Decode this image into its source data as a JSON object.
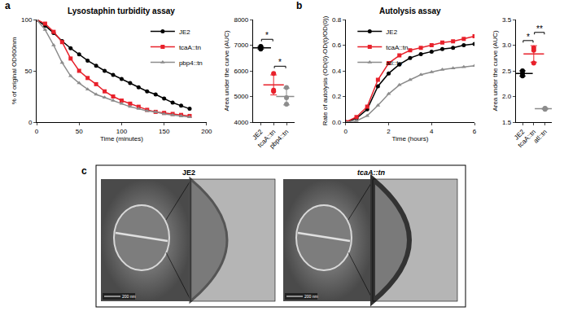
{
  "panel_labels": [
    "a",
    "b",
    "c"
  ],
  "chart_data": [
    {
      "type": "line",
      "title": "Lysostaphin turbidity assay",
      "x_label": "Time (minutes)",
      "y_label": "% of original OD600nm",
      "x": [
        0,
        10,
        20,
        30,
        40,
        50,
        60,
        70,
        80,
        90,
        100,
        110,
        120,
        130,
        140,
        150,
        160,
        170,
        180
      ],
      "series": [
        {
          "name": "JE2",
          "color": "#000000",
          "marker": "circle",
          "values": [
            100,
            94,
            87,
            79,
            72,
            66,
            60,
            55,
            50,
            46,
            42,
            38,
            34,
            30,
            27,
            23,
            19,
            16,
            13
          ]
        },
        {
          "name": "tcaA::tn",
          "color": "#e8212b",
          "marker": "square",
          "values": [
            100,
            96,
            88,
            78,
            62,
            50,
            43,
            37,
            30,
            25,
            21,
            18,
            15,
            12,
            10,
            9,
            8,
            7,
            6
          ]
        },
        {
          "name": "pbp4::tn",
          "color": "#8c8c8c",
          "marker": "triangle",
          "values": [
            100,
            90,
            75,
            58,
            45,
            38,
            32,
            27,
            24,
            21,
            18,
            15,
            13,
            11,
            10,
            8,
            7,
            6,
            5
          ]
        }
      ],
      "xlim": [
        0,
        200
      ],
      "xticks": [
        0,
        50,
        100,
        150,
        200
      ],
      "ylim": [
        0,
        100
      ],
      "yticks": [
        0,
        50,
        100
      ],
      "legend": "top right",
      "grid": false
    },
    {
      "type": "dot",
      "y_label": "Area under the curve (AUC)",
      "categories": [
        "JE2",
        "tcaA::tn",
        "pbp4::tn"
      ],
      "values": [
        [
          6850,
          6900,
          6950
        ],
        [
          5900,
          5250,
          5200
        ],
        [
          5350,
          4950,
          4700
        ]
      ],
      "mean": [
        6900,
        5450,
        5000
      ],
      "sd": [
        50,
        390,
        328
      ],
      "colors": [
        "#000000",
        "#e8212b",
        "#8c8c8c"
      ],
      "ylim": [
        4000,
        8000
      ],
      "yticks": [
        4000,
        5000,
        6000,
        7000,
        8000
      ],
      "annotations": [
        {
          "from": 0,
          "to": 1,
          "label": "*"
        },
        {
          "from": 1,
          "to": 2,
          "label": "*"
        }
      ],
      "grid": false
    },
    {
      "type": "line",
      "title": "Autolysis assay",
      "x_label": "Time (hours)",
      "y_label": "Rate of autolysis (OD(0)-OD(t)/OD(0))",
      "x": [
        0,
        0.5,
        1,
        1.5,
        2,
        2.5,
        3,
        3.5,
        4,
        4.5,
        5,
        5.5,
        6
      ],
      "series": [
        {
          "name": "JE2",
          "color": "#000000",
          "marker": "circle",
          "values": [
            0,
            0.03,
            0.1,
            0.28,
            0.38,
            0.45,
            0.5,
            0.53,
            0.55,
            0.57,
            0.58,
            0.6,
            0.61
          ]
        },
        {
          "name": "tcaA::tn",
          "color": "#e8212b",
          "marker": "square",
          "values": [
            0,
            0.04,
            0.12,
            0.33,
            0.46,
            0.52,
            0.56,
            0.58,
            0.6,
            0.62,
            0.63,
            0.65,
            0.67
          ]
        },
        {
          "name": "atl::tn",
          "color": "#8c8c8c",
          "marker": "triangle",
          "values": [
            0,
            0.01,
            0.05,
            0.13,
            0.22,
            0.29,
            0.33,
            0.37,
            0.39,
            0.41,
            0.42,
            0.43,
            0.44
          ]
        }
      ],
      "xlim": [
        0,
        6
      ],
      "xticks": [
        0,
        2,
        4,
        6
      ],
      "ylim": [
        0,
        0.8
      ],
      "yticks": [
        {
          "value": 0,
          "label": "0.0"
        },
        0.2,
        0.4,
        0.6,
        0.8
      ],
      "legend": "top left",
      "grid": false
    },
    {
      "type": "dot",
      "y_label": "Area under the curve (AUC)",
      "categories": [
        "JE2",
        "tcaA::tn",
        "atl::tn"
      ],
      "values": [
        [
          2.4,
          2.45,
          2.5
        ],
        [
          2.95,
          2.9,
          2.65
        ],
        [
          1.75,
          1.77,
          1.76
        ]
      ],
      "mean": [
        2.45,
        2.83,
        1.76
      ],
      "sd": [
        0.05,
        0.16,
        0.01
      ],
      "colors": [
        "#000000",
        "#e8212b",
        "#8c8c8c"
      ],
      "ylim": [
        1.5,
        3.5
      ],
      "yticks": [
        1.5,
        {
          "value": 2,
          "label": "2.0"
        },
        2.5,
        {
          "value": 3,
          "label": "3.0"
        },
        3.5
      ],
      "annotations": [
        {
          "from": 0,
          "to": 1,
          "label": "*"
        },
        {
          "from": 1,
          "to": 2,
          "label": "**"
        }
      ],
      "grid": false
    }
  ],
  "micrographs": {
    "images": [
      {
        "label": "JE2",
        "scale_bar": "200 nm"
      },
      {
        "label": "tcaA::tn",
        "scale_bar": "200 nm"
      }
    ]
  }
}
